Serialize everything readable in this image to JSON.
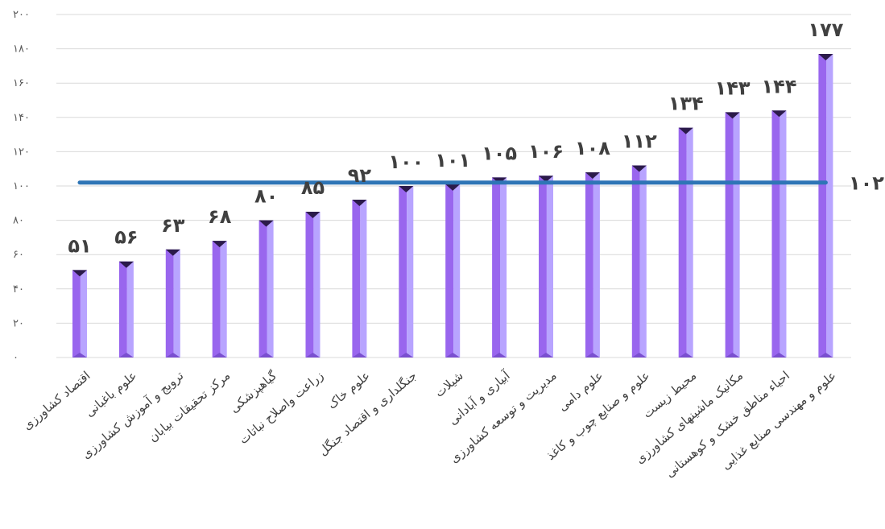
{
  "chart_data": {
    "type": "bar",
    "categories": [
      "اقتصاد کشاورزی",
      "علوم باغبانی",
      "ترویج و آموزش کشاورزی",
      "مرکز تحقیقات بیابان",
      "گیاهپزشکی",
      "زراعت واصلاح نباتات",
      "علوم خاک",
      "جنگلداری و اقتصاد جنگل",
      "شیلات",
      "آبیاری و آبادانی",
      "مدیریت و توسعه کشاورزی",
      "علوم دامی",
      "علوم و صنایع چوب و کاغذ",
      "محیط زیست",
      "مکانیک ماشینهای کشاورزی",
      "احیاء مناطق خشک و کوهستانی",
      "علوم و مهندسی صنایع غذایی"
    ],
    "values": [
      51,
      56,
      63,
      68,
      80,
      85,
      92,
      100,
      101,
      105,
      106,
      108,
      112,
      134,
      143,
      144,
      177
    ],
    "value_labels": [
      "۵۱",
      "۵۶",
      "۶۳",
      "۶۸",
      "۸۰",
      "۸۵",
      "۹۲",
      "۱۰۰",
      "۱۰۱",
      "۱۰۵",
      "۱۰۶",
      "۱۰۸",
      "۱۱۲",
      "۱۳۴",
      "۱۴۳",
      "۱۴۴",
      "۱۷۷"
    ],
    "average": {
      "value": 102,
      "label": "۱۰۲",
      "color": "#2e75b6"
    },
    "ylim": [
      0,
      200
    ],
    "yticks": [
      0,
      20,
      40,
      60,
      80,
      100,
      120,
      140,
      160,
      180,
      200
    ],
    "ytick_labels": [
      "۰",
      "۲۰",
      "۴۰",
      "۶۰",
      "۸۰",
      "۱۰۰",
      "۱۲۰",
      "۱۴۰",
      "۱۶۰",
      "۱۸۰",
      "۲۰۰"
    ],
    "grid": true,
    "colors": {
      "bar_front": "#9966ee",
      "bar_side": "#b8a4ff",
      "bar_top": "#2b1a4a",
      "grid": "#d9d9d9"
    }
  }
}
